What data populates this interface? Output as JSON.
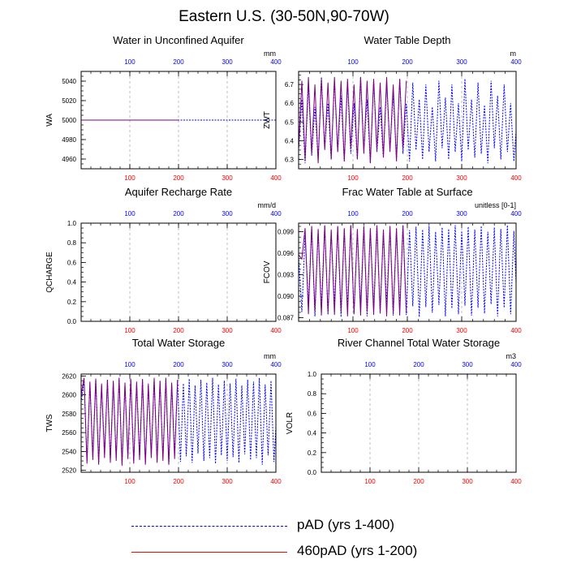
{
  "page": {
    "title": "Eastern U.S. (30-50N,90-70W)"
  },
  "colors": {
    "series1": "#0000ff",
    "series2": "#ff0000",
    "overlap": "#800080",
    "top_ticks": "#0000ff",
    "bottom_ticks": "#ff0000",
    "grid": "#b0b0b0"
  },
  "legend": {
    "items": [
      {
        "label": "pAD (yrs 1-400)",
        "color": "#0000ff",
        "style": "dashed"
      },
      {
        "label": "460pAD (yrs 1-200)",
        "color": "#ff0000",
        "style": "solid"
      }
    ]
  },
  "chart_data": [
    {
      "type": "line",
      "title": "Water in Unconfined Aquifer",
      "ylabel": "WA",
      "units": "mm",
      "xlim": [
        0,
        400
      ],
      "ylim": [
        4950,
        5050
      ],
      "yticks": [
        4960,
        4980,
        5000,
        5020,
        5040
      ],
      "top_ticks": [
        100,
        200,
        300,
        400
      ],
      "bottom_ticks": [
        100,
        200,
        300,
        400
      ],
      "series": [
        {
          "x": [
            0,
            400
          ],
          "values": [
            5000,
            5000
          ]
        },
        {
          "x": [
            0,
            200
          ],
          "values": [
            5000,
            5000
          ]
        }
      ]
    },
    {
      "type": "line",
      "title": "Water Table Depth",
      "ylabel": "ZWT",
      "units": "m",
      "xlim": [
        0,
        400
      ],
      "ylim": [
        6.25,
        6.77
      ],
      "yticks": [
        6.3,
        6.4,
        6.5,
        6.6,
        6.7
      ],
      "top_ticks": [
        100,
        200,
        300,
        400
      ],
      "bottom_ticks": [
        100,
        200,
        300,
        400
      ],
      "series": [
        {
          "x": [
            0,
            6,
            12,
            18,
            24,
            30,
            36,
            42,
            48,
            54,
            60,
            66,
            72,
            78,
            84,
            90,
            96,
            102,
            108,
            114,
            120,
            126,
            132,
            138,
            144,
            150,
            156,
            162,
            168,
            174,
            180,
            186,
            192,
            198,
            204,
            210,
            216,
            222,
            228,
            234,
            240,
            246,
            252,
            258,
            264,
            270,
            276,
            282,
            288,
            294,
            300,
            306,
            312,
            318,
            324,
            330,
            336,
            342,
            348,
            354,
            360,
            366,
            372,
            378,
            384,
            390,
            396,
            400
          ],
          "values": [
            6.35,
            6.62,
            6.28,
            6.7,
            6.32,
            6.58,
            6.3,
            6.74,
            6.36,
            6.6,
            6.3,
            6.72,
            6.34,
            6.64,
            6.29,
            6.71,
            6.33,
            6.6,
            6.3,
            6.74,
            6.35,
            6.62,
            6.28,
            6.72,
            6.34,
            6.58,
            6.31,
            6.7,
            6.36,
            6.65,
            6.3,
            6.73,
            6.33,
            6.6,
            6.29,
            6.71,
            6.35,
            6.62,
            6.3,
            6.7,
            6.34,
            6.58,
            6.29,
            6.72,
            6.36,
            6.63,
            6.3,
            6.7,
            6.34,
            6.6,
            6.29,
            6.73,
            6.35,
            6.62,
            6.31,
            6.71,
            6.33,
            6.59,
            6.28,
            6.72,
            6.36,
            6.64,
            6.3,
            6.7,
            6.34,
            6.6,
            6.29,
            6.45
          ]
        },
        {
          "x": [
            0,
            6,
            12,
            18,
            24,
            30,
            36,
            42,
            48,
            54,
            60,
            66,
            72,
            78,
            84,
            90,
            96,
            102,
            108,
            114,
            120,
            126,
            132,
            138,
            144,
            150,
            156,
            162,
            168,
            174,
            180,
            186,
            192,
            198
          ],
          "values": [
            6.36,
            6.72,
            6.3,
            6.74,
            6.33,
            6.7,
            6.28,
            6.73,
            6.35,
            6.71,
            6.3,
            6.74,
            6.34,
            6.72,
            6.29,
            6.73,
            6.36,
            6.7,
            6.3,
            6.74,
            6.33,
            6.72,
            6.28,
            6.73,
            6.35,
            6.71,
            6.31,
            6.74,
            6.34,
            6.7,
            6.29,
            6.73,
            6.36,
            6.72
          ]
        }
      ]
    },
    {
      "type": "line",
      "title": "Aquifer Recharge Rate",
      "ylabel": "QCHARGE",
      "units": "mm/d",
      "xlim": [
        0,
        400
      ],
      "ylim": [
        0,
        1
      ],
      "yticks": [
        0.0,
        0.2,
        0.4,
        0.6,
        0.8,
        1.0
      ],
      "ytick_labels": [
        "0.0",
        "0.2",
        "0.4",
        "0.6",
        "0.8",
        "1.0"
      ],
      "top_ticks": [
        100,
        200,
        300,
        400
      ],
      "bottom_ticks": [
        100,
        200,
        300,
        400
      ],
      "series": []
    },
    {
      "type": "line",
      "title": "Frac Water Table at Surface",
      "ylabel": "FCOV",
      "units": "unitless [0-1]",
      "xlim": [
        0,
        400
      ],
      "ylim": [
        0.0865,
        0.1002
      ],
      "yticks": [
        0.087,
        0.09,
        0.093,
        0.096,
        0.099
      ],
      "ytick_labels": [
        "0.087",
        "0.090",
        "0.093",
        "0.096",
        "0.099"
      ],
      "top_ticks": [
        100,
        200,
        300,
        400
      ],
      "bottom_ticks": [
        100,
        200,
        300,
        400
      ],
      "series": [
        {
          "x": [
            0,
            6,
            12,
            18,
            24,
            30,
            36,
            42,
            48,
            54,
            60,
            66,
            72,
            78,
            84,
            90,
            96,
            102,
            108,
            114,
            120,
            126,
            132,
            138,
            144,
            150,
            156,
            162,
            168,
            174,
            180,
            186,
            192,
            198,
            204,
            210,
            216,
            222,
            228,
            234,
            240,
            246,
            252,
            258,
            264,
            270,
            276,
            282,
            288,
            294,
            300,
            306,
            312,
            318,
            324,
            330,
            336,
            342,
            348,
            354,
            360,
            366,
            372,
            378,
            384,
            390,
            396,
            400
          ],
          "values": [
            0.0955,
            0.0878,
            0.0985,
            0.089,
            0.0996,
            0.0872,
            0.0992,
            0.0885,
            0.0998,
            0.0874,
            0.099,
            0.0888,
            0.0996,
            0.0871,
            0.0994,
            0.0883,
            0.0999,
            0.0875,
            0.0991,
            0.0887,
            0.0997,
            0.0872,
            0.0993,
            0.0884,
            0.0998,
            0.0876,
            0.099,
            0.0889,
            0.0996,
            0.0873,
            0.0994,
            0.0882,
            0.0999,
            0.0874,
            0.0992,
            0.0886,
            0.0997,
            0.0871,
            0.0993,
            0.0885,
            0.0998,
            0.0877,
            0.099,
            0.0888,
            0.0996,
            0.0872,
            0.0994,
            0.0883,
            0.0999,
            0.0875,
            0.0991,
            0.0887,
            0.0997,
            0.0873,
            0.0993,
            0.0884,
            0.0998,
            0.0876,
            0.099,
            0.0889,
            0.0996,
            0.0872,
            0.0994,
            0.0884,
            0.0999,
            0.0875,
            0.0991,
            0.0918
          ]
        },
        {
          "x": [
            0,
            6,
            12,
            18,
            24,
            30,
            36,
            42,
            48,
            54,
            60,
            66,
            72,
            78,
            84,
            90,
            96,
            102,
            108,
            114,
            120,
            126,
            132,
            138,
            144,
            150,
            156,
            162,
            168,
            174,
            180,
            186,
            192,
            198
          ],
          "values": [
            0.0958,
            0.0952,
            0.0995,
            0.0875,
            0.0998,
            0.0879,
            0.0994,
            0.0873,
            0.0999,
            0.0877,
            0.0993,
            0.0874,
            0.0998,
            0.0878,
            0.0995,
            0.0872,
            0.0999,
            0.0876,
            0.0994,
            0.0873,
            0.0998,
            0.0878,
            0.0995,
            0.0874,
            0.0999,
            0.0877,
            0.0993,
            0.0872,
            0.0998,
            0.0876,
            0.0995,
            0.0873,
            0.0999,
            0.0878
          ]
        }
      ]
    },
    {
      "type": "line",
      "title": "Total Water Storage",
      "ylabel": "TWS",
      "units": "mm",
      "xlim": [
        0,
        400
      ],
      "ylim": [
        2518,
        2622
      ],
      "yticks": [
        2520,
        2540,
        2560,
        2580,
        2600,
        2620
      ],
      "top_ticks": [
        100,
        200,
        300,
        400
      ],
      "bottom_ticks": [
        100,
        200,
        300,
        400
      ],
      "series": [
        {
          "x": [
            0,
            6,
            12,
            18,
            24,
            30,
            36,
            42,
            48,
            54,
            60,
            66,
            72,
            78,
            84,
            90,
            96,
            102,
            108,
            114,
            120,
            126,
            132,
            138,
            144,
            150,
            156,
            162,
            168,
            174,
            180,
            186,
            192,
            198,
            204,
            210,
            216,
            222,
            228,
            234,
            240,
            246,
            252,
            258,
            264,
            270,
            276,
            282,
            288,
            294,
            300,
            306,
            312,
            318,
            324,
            330,
            336,
            342,
            348,
            354,
            360,
            366,
            372,
            378,
            384,
            390,
            396,
            400
          ],
          "values": [
            2592,
            2615,
            2530,
            2612,
            2535,
            2617,
            2528,
            2610,
            2538,
            2616,
            2531,
            2613,
            2533,
            2618,
            2527,
            2611,
            2536,
            2615,
            2530,
            2612,
            2534,
            2617,
            2528,
            2610,
            2537,
            2616,
            2531,
            2614,
            2533,
            2618,
            2526,
            2611,
            2536,
            2615,
            2529,
            2612,
            2535,
            2617,
            2528,
            2610,
            2538,
            2616,
            2530,
            2613,
            2533,
            2618,
            2527,
            2611,
            2536,
            2615,
            2530,
            2612,
            2534,
            2617,
            2528,
            2610,
            2537,
            2616,
            2531,
            2614,
            2533,
            2618,
            2526,
            2611,
            2536,
            2615,
            2529,
            2566
          ]
        },
        {
          "x": [
            0,
            6,
            12,
            18,
            24,
            30,
            36,
            42,
            48,
            54,
            60,
            66,
            72,
            78,
            84,
            90,
            96,
            102,
            108,
            114,
            120,
            126,
            132,
            138,
            144,
            150,
            156,
            162,
            168,
            174,
            180,
            186,
            192,
            198
          ],
          "values": [
            2600,
            2618,
            2527,
            2614,
            2531,
            2617,
            2526,
            2612,
            2533,
            2616,
            2528,
            2615,
            2530,
            2618,
            2525,
            2613,
            2532,
            2617,
            2527,
            2614,
            2531,
            2616,
            2526,
            2612,
            2533,
            2618,
            2528,
            2615,
            2530,
            2617,
            2526,
            2613,
            2532,
            2616
          ]
        }
      ]
    },
    {
      "type": "line",
      "title": "River Channel Total Water Storage",
      "ylabel": "VOLR",
      "units": "m3",
      "xlim": [
        0,
        400
      ],
      "ylim": [
        0,
        1
      ],
      "yticks": [
        0.0,
        0.2,
        0.4,
        0.6,
        0.8,
        1.0
      ],
      "ytick_labels": [
        "0.0",
        "0.2",
        "0.4",
        "0.6",
        "0.8",
        "1.0"
      ],
      "top_ticks": [
        100,
        200,
        300,
        400
      ],
      "bottom_ticks": [
        100,
        200,
        300,
        400
      ],
      "series": []
    }
  ]
}
